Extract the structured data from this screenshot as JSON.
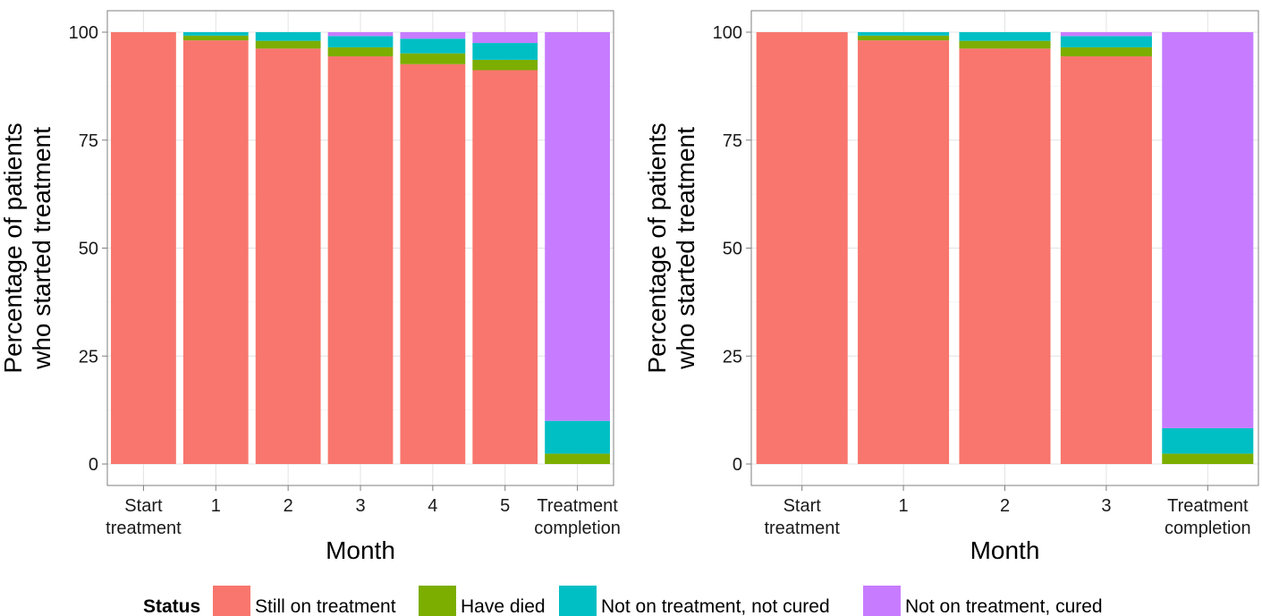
{
  "legend": {
    "title": "Status",
    "position": "bottom",
    "items": [
      {
        "label": "Still on treatment",
        "color": "#F8766D"
      },
      {
        "label": "Have died",
        "color": "#7CAE00"
      },
      {
        "label": "Not on treatment, not cured",
        "color": "#00BFC4"
      },
      {
        "label": "Not on treatment, cured",
        "color": "#C77CFF"
      }
    ]
  },
  "chart_data": [
    {
      "type": "bar",
      "stacked": true,
      "xlabel": "Month",
      "ylabel": [
        "Percentage of patients",
        "who started treatment"
      ],
      "ylim": [
        0,
        100
      ],
      "yticks": [
        0,
        25,
        50,
        75,
        100
      ],
      "grid": true,
      "categories": [
        [
          "Start",
          "treatment"
        ],
        [
          "1"
        ],
        [
          "2"
        ],
        [
          "3"
        ],
        [
          "4"
        ],
        [
          "5"
        ],
        [
          "Treatment",
          "completion"
        ]
      ],
      "series": [
        {
          "name": "Still on treatment",
          "color": "#F8766D",
          "values": [
            100,
            98.1,
            96.2,
            94.4,
            92.6,
            91.2,
            0
          ]
        },
        {
          "name": "Have died",
          "color": "#7CAE00",
          "values": [
            0,
            1.1,
            1.8,
            2.1,
            2.5,
            2.4,
            2.4
          ]
        },
        {
          "name": "Not on treatment, not cured",
          "color": "#00BFC4",
          "values": [
            0,
            0.8,
            2.0,
            2.6,
            3.4,
            3.9,
            7.6
          ]
        },
        {
          "name": "Not on treatment, cured",
          "color": "#C77CFF",
          "values": [
            0,
            0,
            0,
            0.9,
            1.5,
            2.5,
            90.0
          ]
        }
      ]
    },
    {
      "type": "bar",
      "stacked": true,
      "xlabel": "Month",
      "ylabel": [
        "Percentage of patients",
        "who started treatment"
      ],
      "ylim": [
        0,
        100
      ],
      "yticks": [
        0,
        25,
        50,
        75,
        100
      ],
      "grid": true,
      "categories": [
        [
          "Start",
          "treatment"
        ],
        [
          "1"
        ],
        [
          "2"
        ],
        [
          "3"
        ],
        [
          "Treatment",
          "completion"
        ]
      ],
      "series": [
        {
          "name": "Still on treatment",
          "color": "#F8766D",
          "values": [
            100,
            98.1,
            96.2,
            94.4,
            0
          ]
        },
        {
          "name": "Have died",
          "color": "#7CAE00",
          "values": [
            0,
            1.1,
            1.8,
            2.1,
            2.4
          ]
        },
        {
          "name": "Not on treatment, not cured",
          "color": "#00BFC4",
          "values": [
            0,
            0.8,
            2.0,
            2.6,
            5.9
          ]
        },
        {
          "name": "Not on treatment, cured",
          "color": "#C77CFF",
          "values": [
            0,
            0,
            0,
            0.9,
            91.7
          ]
        }
      ]
    }
  ]
}
